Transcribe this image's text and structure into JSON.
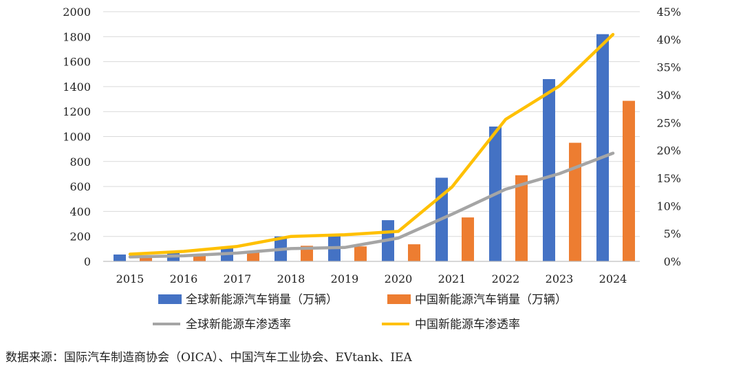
{
  "chart_data": {
    "type": "bar",
    "categories": [
      "2015",
      "2016",
      "2017",
      "2018",
      "2019",
      "2020",
      "2021",
      "2022",
      "2023",
      "2024"
    ],
    "series": [
      {
        "name": "全球新能源汽车销量（万辆）",
        "kind": "bar",
        "axis": "left",
        "color": "#4472C4",
        "values": [
          55,
          75,
          115,
          200,
          210,
          330,
          670,
          1080,
          1460,
          1820
        ]
      },
      {
        "name": "中国新能源汽车销量（万辆）",
        "kind": "bar",
        "axis": "left",
        "color": "#ED7D31",
        "values": [
          33,
          50,
          78,
          125,
          120,
          137,
          352,
          690,
          950,
          1286
        ]
      },
      {
        "name": "全球新能源车渗透率",
        "kind": "line",
        "axis": "right",
        "color": "#A5A5A5",
        "values": [
          0.8,
          1.0,
          1.5,
          2.3,
          2.5,
          4.2,
          8.5,
          13.0,
          15.8,
          19.5
        ]
      },
      {
        "name": "中国新能源车渗透率",
        "kind": "line",
        "axis": "right",
        "color": "#FFC000",
        "values": [
          1.3,
          1.8,
          2.7,
          4.5,
          4.8,
          5.4,
          13.4,
          25.6,
          31.6,
          40.9
        ]
      }
    ],
    "y_left": {
      "min": 0,
      "max": 2000,
      "ticks": [
        "0",
        "200",
        "400",
        "600",
        "800",
        "1000",
        "1200",
        "1400",
        "1600",
        "1800",
        "2000"
      ]
    },
    "y_right": {
      "min": 0,
      "max": 45,
      "ticks": [
        "0%",
        "5%",
        "10%",
        "15%",
        "20%",
        "25%",
        "30%",
        "35%",
        "40%",
        "45%"
      ]
    },
    "grid": true,
    "legend": "bottom"
  },
  "source_note": "数据来源：国际汽车制造商协会（OICA）、中国汽车工业协会、EVtank、IEA"
}
